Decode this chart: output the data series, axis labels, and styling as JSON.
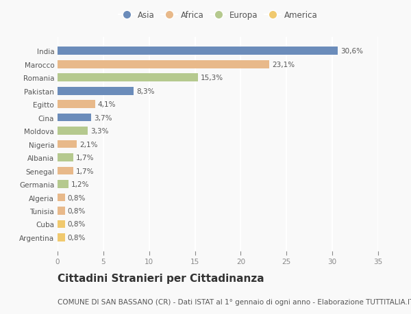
{
  "countries": [
    "India",
    "Marocco",
    "Romania",
    "Pakistan",
    "Egitto",
    "Cina",
    "Moldova",
    "Nigeria",
    "Albania",
    "Senegal",
    "Germania",
    "Algeria",
    "Tunisia",
    "Cuba",
    "Argentina"
  ],
  "values": [
    30.6,
    23.1,
    15.3,
    8.3,
    4.1,
    3.7,
    3.3,
    2.1,
    1.7,
    1.7,
    1.2,
    0.8,
    0.8,
    0.8,
    0.8
  ],
  "labels": [
    "30,6%",
    "23,1%",
    "15,3%",
    "8,3%",
    "4,1%",
    "3,7%",
    "3,3%",
    "2,1%",
    "1,7%",
    "1,7%",
    "1,2%",
    "0,8%",
    "0,8%",
    "0,8%",
    "0,8%"
  ],
  "continents": [
    "Asia",
    "Africa",
    "Europa",
    "Asia",
    "Africa",
    "Asia",
    "Europa",
    "Africa",
    "Europa",
    "Africa",
    "Europa",
    "Africa",
    "Africa",
    "America",
    "America"
  ],
  "continent_colors": {
    "Asia": "#6b8cba",
    "Africa": "#e8b98a",
    "Europa": "#b5c98e",
    "America": "#f0c96e"
  },
  "legend_order": [
    "Asia",
    "Africa",
    "Europa",
    "America"
  ],
  "xlim": [
    0,
    35
  ],
  "xticks": [
    0,
    5,
    10,
    15,
    20,
    25,
    30,
    35
  ],
  "title": "Cittadini Stranieri per Cittadinanza",
  "subtitle": "COMUNE DI SAN BASSANO (CR) - Dati ISTAT al 1° gennaio di ogni anno - Elaborazione TUTTITALIA.IT",
  "background_color": "#f9f9f9",
  "grid_color": "#ffffff",
  "bar_height": 0.6,
  "title_fontsize": 11,
  "subtitle_fontsize": 7.5,
  "label_fontsize": 7.5,
  "tick_fontsize": 7.5,
  "legend_fontsize": 8.5
}
